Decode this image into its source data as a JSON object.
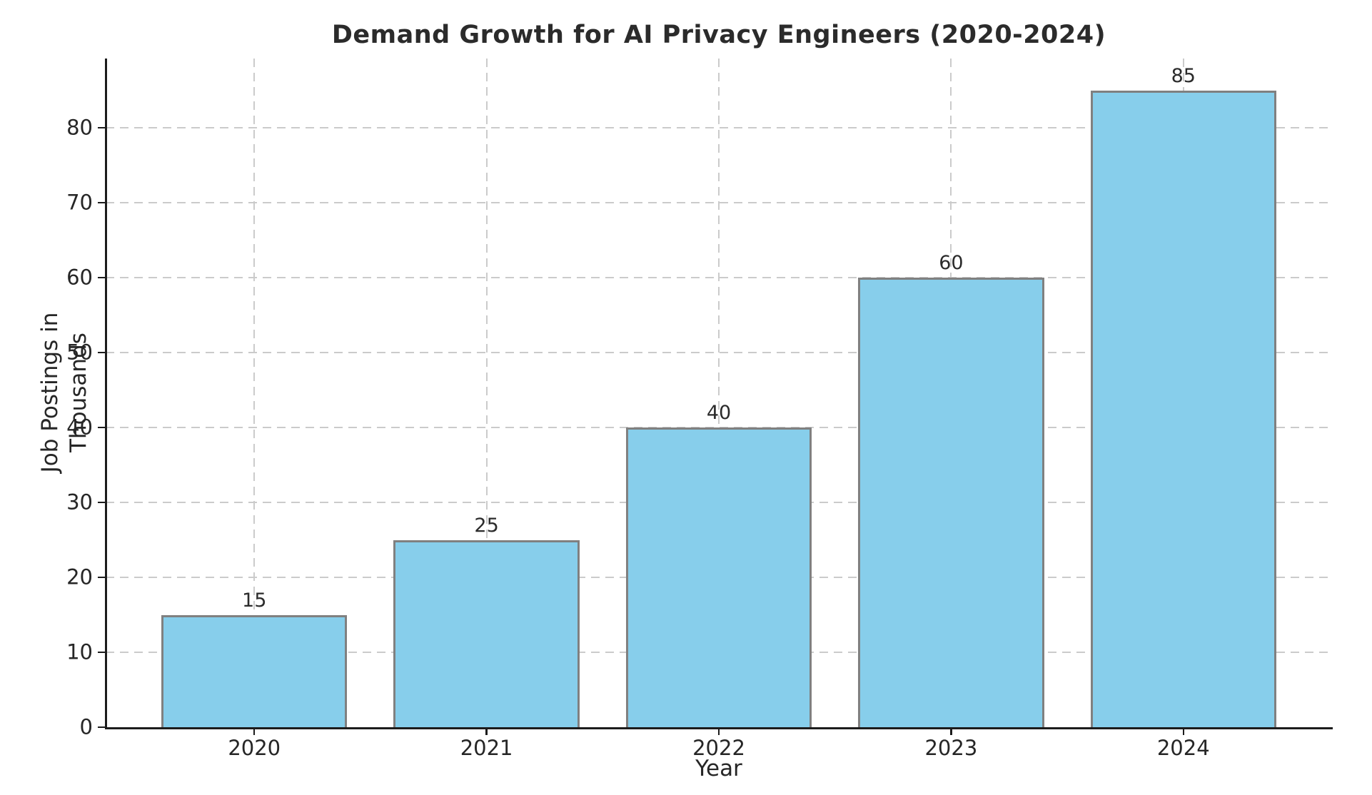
{
  "chart_data": {
    "type": "bar",
    "title": "Demand Growth for AI Privacy Engineers (2020-2024)",
    "xlabel": "Year",
    "ylabel": "Job Postings in Thousands",
    "categories": [
      "2020",
      "2021",
      "2022",
      "2023",
      "2024"
    ],
    "values": [
      15,
      25,
      40,
      60,
      85
    ],
    "bar_value_labels": [
      "15",
      "25",
      "40",
      "60",
      "85"
    ],
    "yticks": [
      0,
      10,
      20,
      30,
      40,
      50,
      60,
      70,
      80
    ],
    "ytick_labels": [
      "0",
      "10",
      "20",
      "30",
      "40",
      "50",
      "60",
      "70",
      "80"
    ],
    "ylim": [
      0,
      89.25
    ],
    "xlim": [
      -0.64,
      4.64
    ],
    "bar_width": 0.8,
    "grid": "both-axes dashed, drawn below bars",
    "legend": "none",
    "colors": {
      "bar_fill": "#87CEEB",
      "bar_edge": "#808080",
      "grid": "#cbcbcb",
      "spine": "#1c1c1c",
      "text": "#262626",
      "background": "#ffffff"
    }
  }
}
